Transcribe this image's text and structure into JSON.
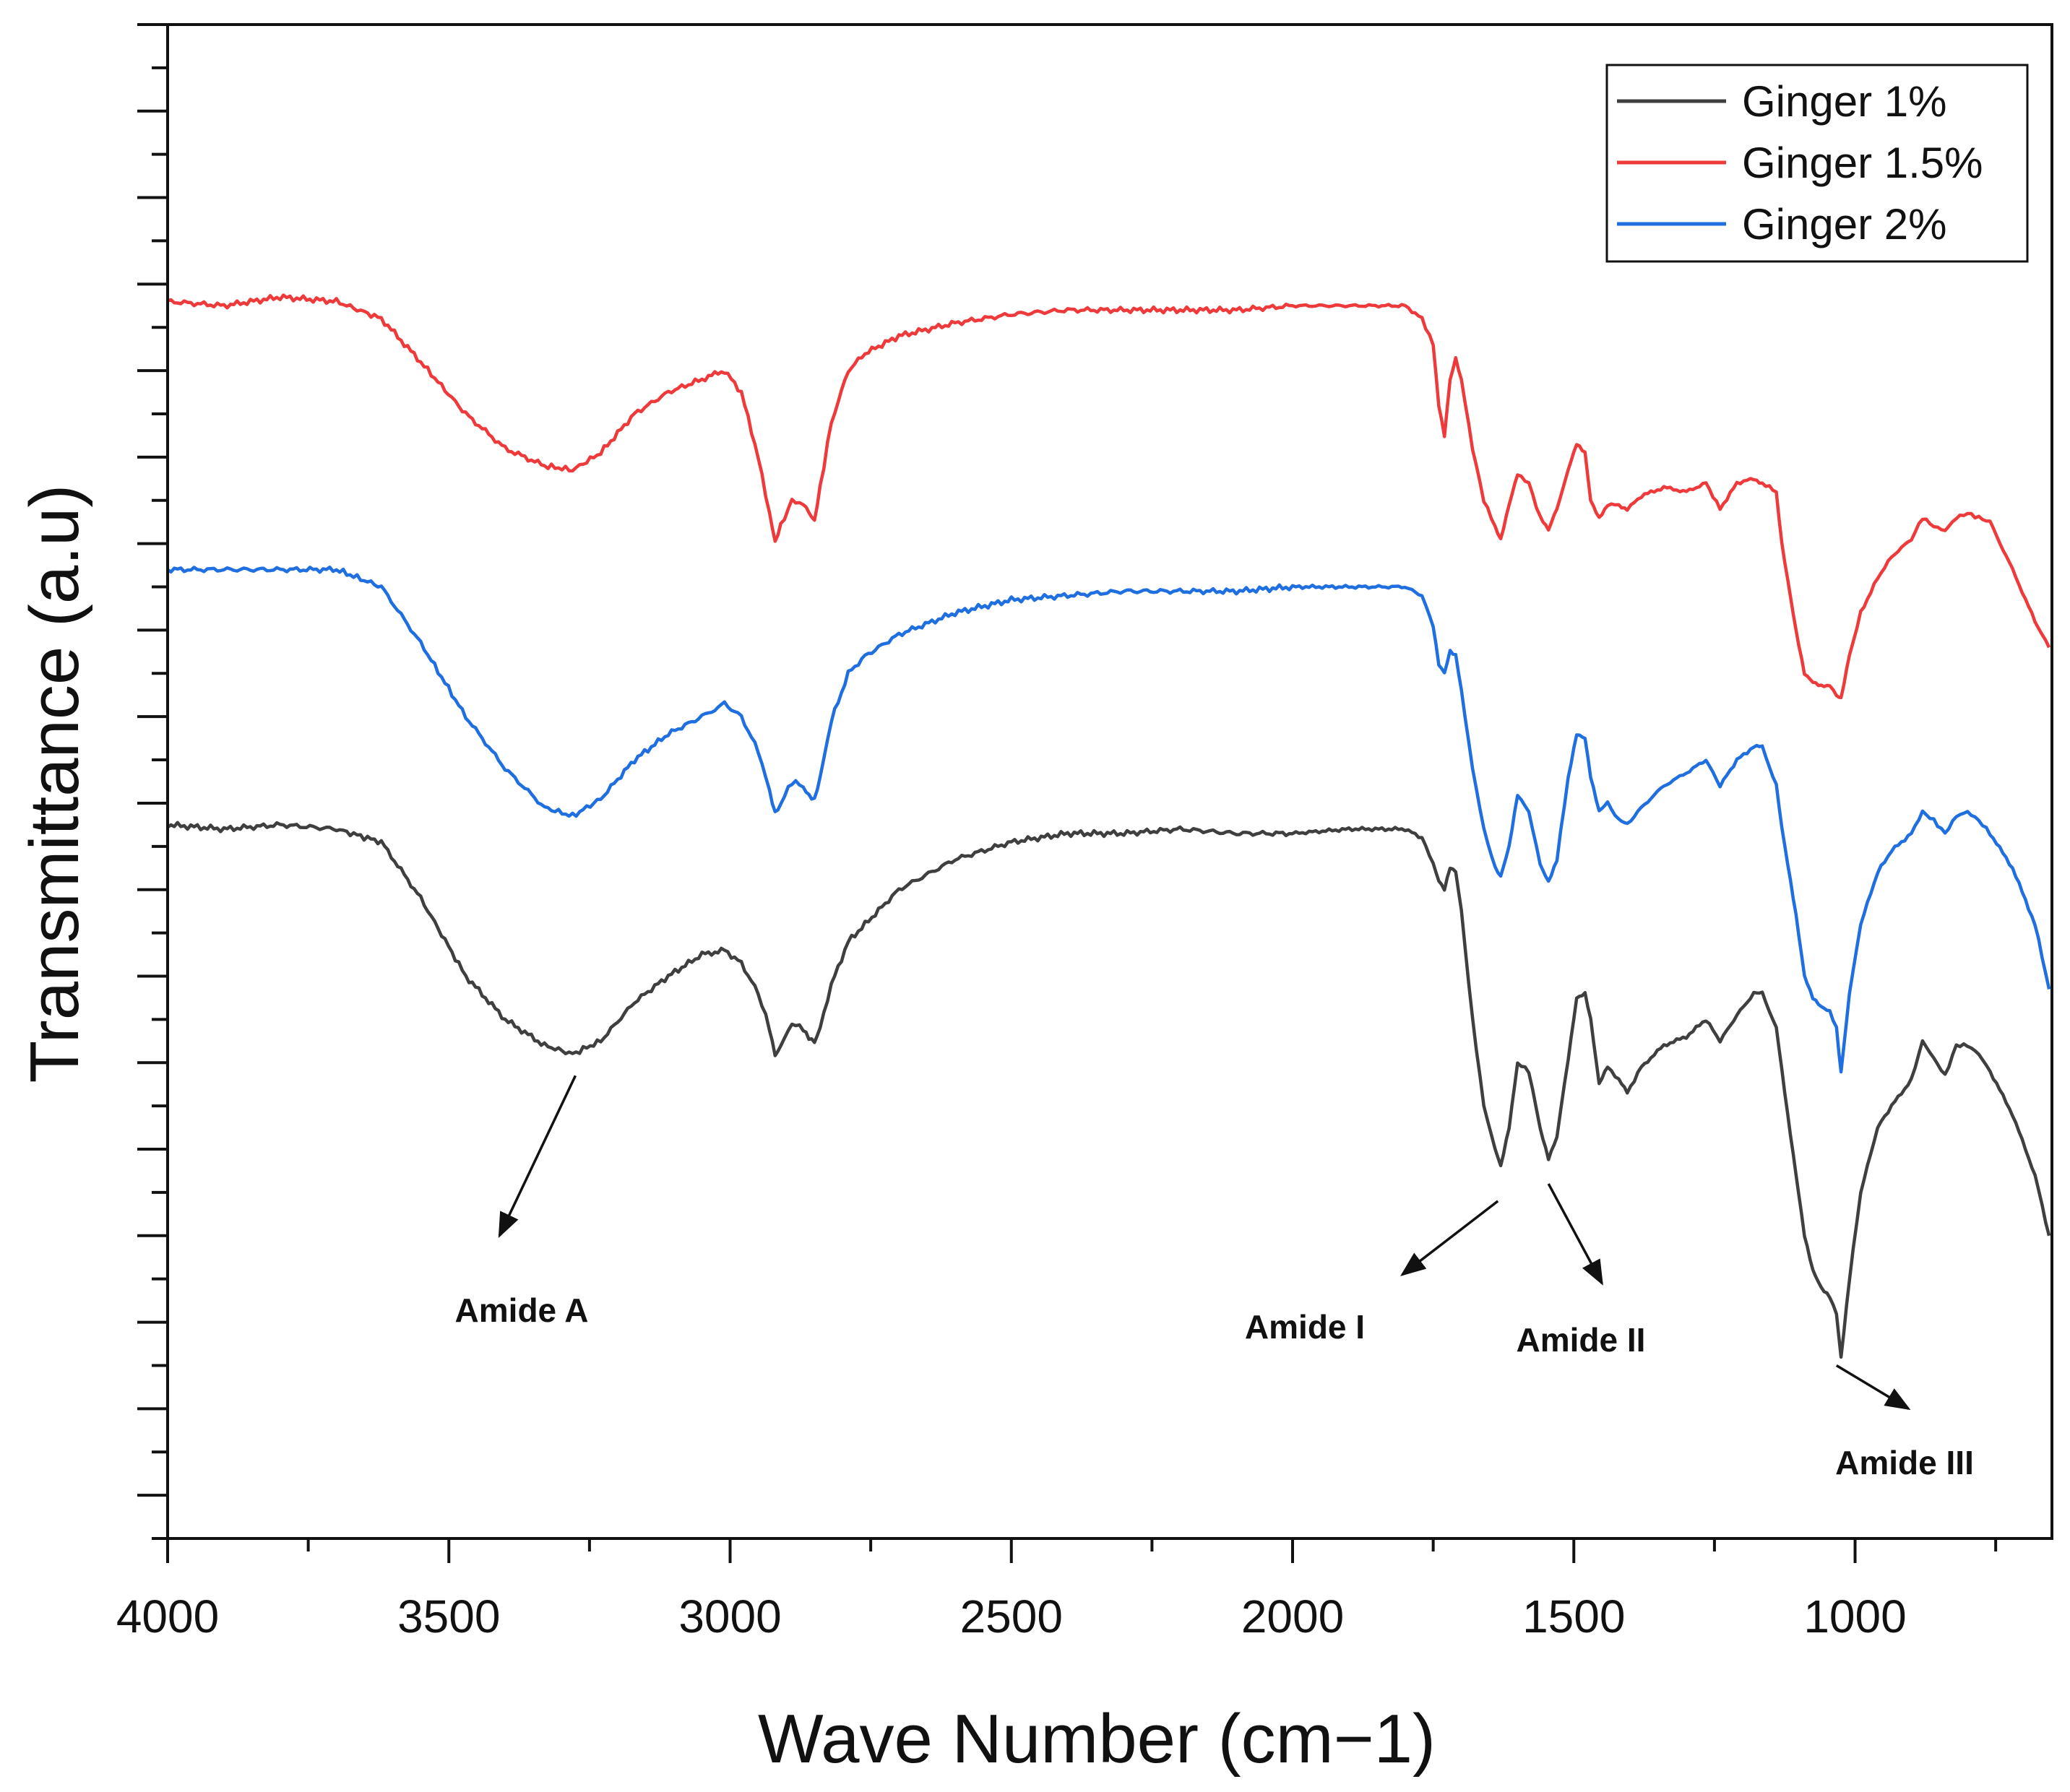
{
  "chart_data": {
    "type": "line",
    "title": "",
    "xlabel": "Wave Number (cm−1)",
    "ylabel": "Transmittance (a.u)",
    "xlim": [
      4000,
      650
    ],
    "x_reversed": true,
    "ylim": [
      0,
      35
    ],
    "grid": false,
    "yticklabels_shown": false,
    "xticks": [
      4000,
      3500,
      3000,
      2500,
      2000,
      1500,
      1000
    ],
    "xtick_labels": [
      "4000",
      "3500",
      "3000",
      "2500",
      "2000",
      "1500",
      "1000"
    ],
    "legend": {
      "placement": "top-right"
    },
    "series": [
      {
        "name": "Ginger 1%",
        "color": "#3f3f3f",
        "x": [
          4000,
          3900,
          3800,
          3700,
          3620,
          3550,
          3470,
          3400,
          3330,
          3280,
          3230,
          3170,
          3110,
          3050,
          3010,
          2980,
          2950,
          2930,
          2920,
          2910,
          2890,
          2870,
          2860,
          2850,
          2840,
          2820,
          2790,
          2760,
          2700,
          2600,
          2500,
          2400,
          2300,
          2200,
          2100,
          2000,
          1900,
          1800,
          1770,
          1750,
          1740,
          1730,
          1720,
          1710,
          1700,
          1680,
          1660,
          1640,
          1630,
          1615,
          1600,
          1580,
          1560,
          1545,
          1530,
          1510,
          1495,
          1480,
          1470,
          1455,
          1440,
          1420,
          1405,
          1380,
          1340,
          1300,
          1265,
          1240,
          1210,
          1180,
          1165,
          1140,
          1130,
          1120,
          1105,
          1090,
          1075,
          1060,
          1045,
          1033,
          1025,
          1010,
          990,
          960,
          935,
          900,
          880,
          860,
          840,
          820,
          800,
          780,
          760,
          720,
          680,
          655
        ],
        "values": [
          16.5,
          16.4,
          16.5,
          16.4,
          16.1,
          14.8,
          13.0,
          12.0,
          11.4,
          11.2,
          11.5,
          12.4,
          13.0,
          13.5,
          13.6,
          13.3,
          12.6,
          11.8,
          11.2,
          11.4,
          11.9,
          11.8,
          11.6,
          11.5,
          11.8,
          12.8,
          13.8,
          14.2,
          15.0,
          15.7,
          16.1,
          16.3,
          16.3,
          16.4,
          16.3,
          16.3,
          16.4,
          16.4,
          16.2,
          15.6,
          15.2,
          15.0,
          15.5,
          15.4,
          14.5,
          12.0,
          10.0,
          9.0,
          8.6,
          9.5,
          11.0,
          10.8,
          9.5,
          8.8,
          9.3,
          11.1,
          12.5,
          12.6,
          12.0,
          10.5,
          10.9,
          10.6,
          10.3,
          10.9,
          11.4,
          11.6,
          12.0,
          11.5,
          12.1,
          12.6,
          12.6,
          11.8,
          10.8,
          9.8,
          8.4,
          7.0,
          6.2,
          5.8,
          5.6,
          5.2,
          4.2,
          6.0,
          8.0,
          9.5,
          10.0,
          10.6,
          11.5,
          11.1,
          10.7,
          11.4,
          11.4,
          11.2,
          10.8,
          9.8,
          8.4,
          7.0
        ]
      },
      {
        "name": "Ginger 1.5%",
        "color": "#ee3a3a",
        "x": [
          4000,
          3900,
          3800,
          3700,
          3620,
          3550,
          3470,
          3400,
          3330,
          3280,
          3230,
          3170,
          3110,
          3050,
          3010,
          2980,
          2950,
          2930,
          2920,
          2910,
          2890,
          2870,
          2860,
          2850,
          2840,
          2820,
          2790,
          2760,
          2700,
          2600,
          2500,
          2400,
          2300,
          2200,
          2100,
          2000,
          1900,
          1800,
          1770,
          1750,
          1740,
          1730,
          1720,
          1710,
          1700,
          1680,
          1660,
          1640,
          1630,
          1615,
          1600,
          1580,
          1560,
          1545,
          1530,
          1510,
          1495,
          1480,
          1470,
          1455,
          1440,
          1420,
          1405,
          1380,
          1340,
          1300,
          1265,
          1240,
          1210,
          1180,
          1165,
          1140,
          1130,
          1120,
          1105,
          1090,
          1075,
          1060,
          1045,
          1033,
          1025,
          1010,
          990,
          960,
          935,
          900,
          880,
          860,
          840,
          820,
          800,
          780,
          760,
          720,
          680,
          655
        ],
        "values": [
          28.6,
          28.5,
          28.7,
          28.6,
          28.2,
          27.2,
          26.0,
          25.2,
          24.8,
          24.7,
          25.1,
          26.0,
          26.5,
          26.8,
          27.0,
          26.5,
          25.0,
          23.7,
          23.0,
          23.4,
          24.0,
          23.9,
          23.7,
          23.5,
          24.3,
          25.8,
          27.0,
          27.4,
          27.8,
          28.1,
          28.3,
          28.4,
          28.4,
          28.4,
          28.4,
          28.5,
          28.5,
          28.5,
          28.2,
          27.6,
          26.2,
          25.5,
          26.8,
          27.3,
          26.8,
          25.2,
          24.0,
          23.4,
          23.1,
          23.9,
          24.6,
          24.4,
          23.6,
          23.3,
          23.8,
          24.7,
          25.3,
          25.1,
          24.0,
          23.6,
          23.9,
          23.9,
          23.8,
          24.1,
          24.3,
          24.2,
          24.4,
          23.8,
          24.4,
          24.5,
          24.4,
          24.2,
          23.0,
          22.2,
          21.0,
          20.0,
          19.8,
          19.7,
          19.7,
          19.5,
          19.4,
          20.4,
          21.4,
          22.2,
          22.7,
          23.1,
          23.6,
          23.4,
          23.3,
          23.6,
          23.7,
          23.6,
          23.5,
          22.4,
          21.2,
          20.6
        ]
      },
      {
        "name": "Ginger 2%",
        "color": "#1f6fe0",
        "x": [
          4000,
          3900,
          3800,
          3700,
          3620,
          3550,
          3470,
          3400,
          3330,
          3280,
          3230,
          3170,
          3110,
          3050,
          3010,
          2980,
          2950,
          2930,
          2920,
          2910,
          2890,
          2870,
          2860,
          2850,
          2840,
          2820,
          2790,
          2760,
          2700,
          2600,
          2500,
          2400,
          2300,
          2200,
          2100,
          2000,
          1900,
          1800,
          1770,
          1750,
          1740,
          1730,
          1720,
          1710,
          1700,
          1680,
          1660,
          1640,
          1630,
          1615,
          1600,
          1580,
          1560,
          1545,
          1530,
          1510,
          1495,
          1480,
          1470,
          1455,
          1440,
          1420,
          1405,
          1380,
          1340,
          1300,
          1265,
          1240,
          1210,
          1180,
          1165,
          1140,
          1130,
          1120,
          1105,
          1090,
          1075,
          1060,
          1045,
          1033,
          1025,
          1010,
          990,
          960,
          935,
          900,
          880,
          860,
          840,
          820,
          800,
          780,
          760,
          720,
          680,
          655
        ],
        "values": [
          22.4,
          22.4,
          22.4,
          22.4,
          22.0,
          20.7,
          19.0,
          17.8,
          16.9,
          16.7,
          17.1,
          18.0,
          18.6,
          19.0,
          19.3,
          19.0,
          18.2,
          17.3,
          16.8,
          17.0,
          17.5,
          17.4,
          17.2,
          17.1,
          17.6,
          18.9,
          20.0,
          20.4,
          20.9,
          21.4,
          21.7,
          21.8,
          21.9,
          21.9,
          21.9,
          22.0,
          22.0,
          22.0,
          21.8,
          21.1,
          20.2,
          20.0,
          20.5,
          20.4,
          19.6,
          17.8,
          16.4,
          15.5,
          15.3,
          16.0,
          17.2,
          16.8,
          15.6,
          15.2,
          15.7,
          17.6,
          18.6,
          18.5,
          17.6,
          16.8,
          17.0,
          16.6,
          16.5,
          16.9,
          17.4,
          17.7,
          18.0,
          17.4,
          18.0,
          18.3,
          18.3,
          17.4,
          16.4,
          15.6,
          14.4,
          13.0,
          12.5,
          12.3,
          12.2,
          11.8,
          10.8,
          12.6,
          14.2,
          15.4,
          15.9,
          16.3,
          16.8,
          16.6,
          16.3,
          16.7,
          16.8,
          16.6,
          16.3,
          15.5,
          14.2,
          12.7
        ]
      }
    ],
    "annotations": [
      {
        "text": "Amide A",
        "x": 3275,
        "y": 10.7,
        "arrow_end": [
          3410,
          7.0
        ]
      },
      {
        "text": "Amide I",
        "x": 1635,
        "y": 7.8,
        "arrow_end": [
          1805,
          6.1
        ]
      },
      {
        "text": "Amide II",
        "x": 1545,
        "y": 8.2,
        "arrow_end": [
          1450,
          5.9
        ]
      },
      {
        "text": "Amide III",
        "x": 1033,
        "y": 4.0,
        "arrow_end": [
          905,
          3.0
        ]
      }
    ]
  }
}
